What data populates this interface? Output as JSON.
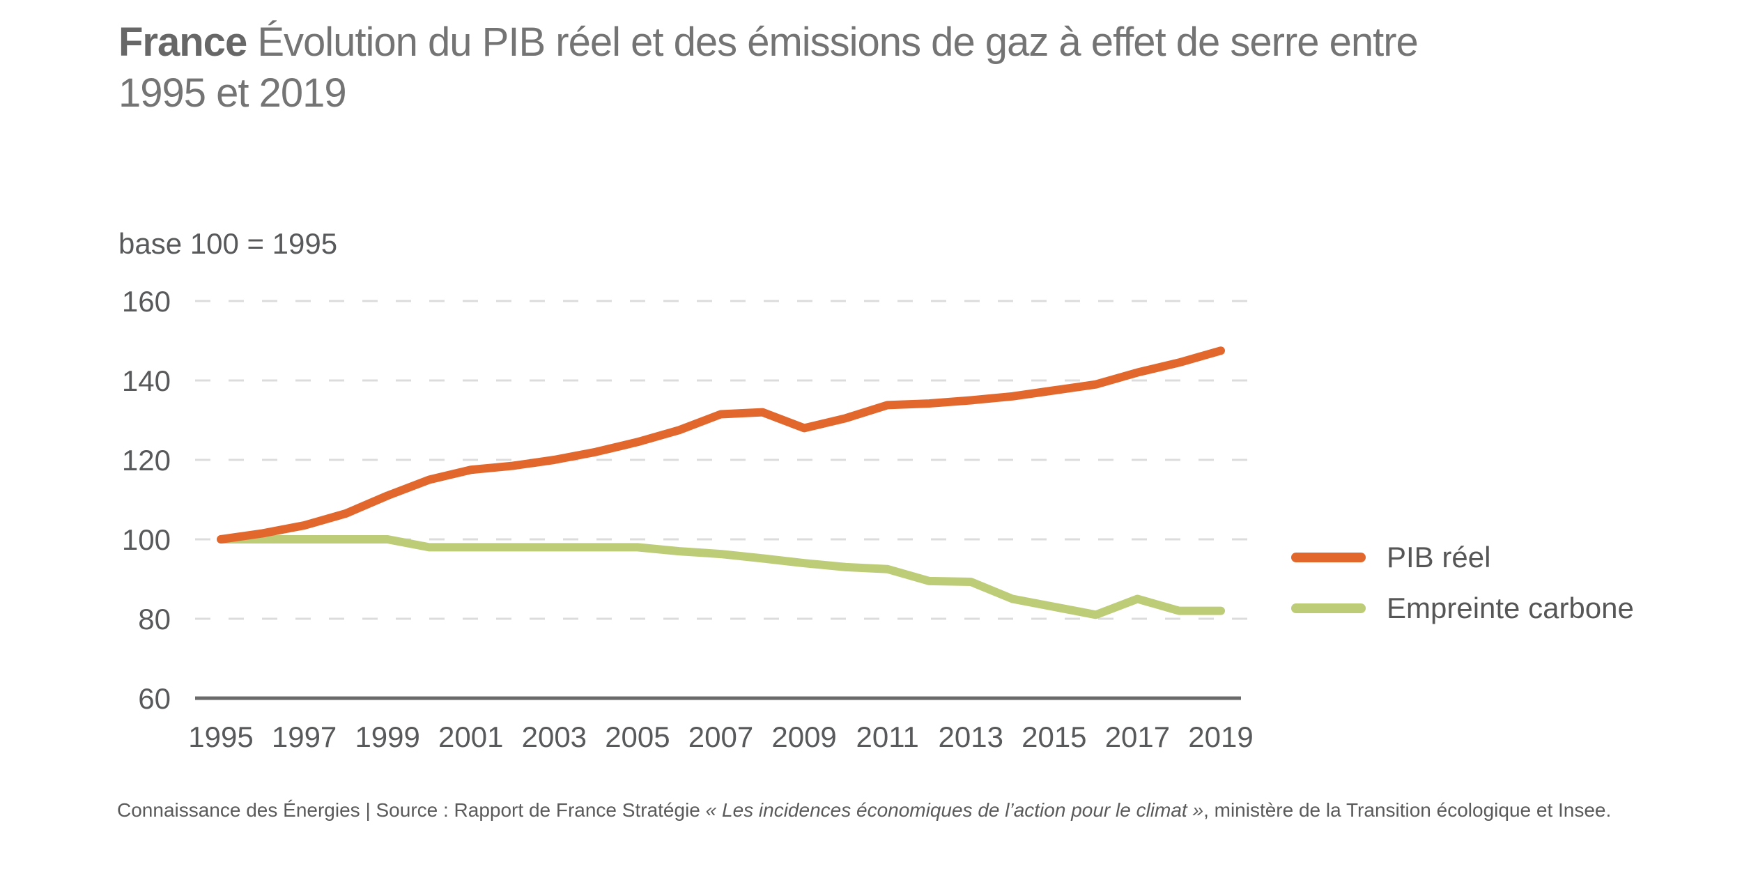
{
  "title": {
    "bold": "France",
    "line1_rest": "Évolution du PIB réel et des émissions de gaz à effet de serre entre",
    "line2": "1995 et 2019"
  },
  "axis_note": "base 100 = 1995",
  "footer": {
    "prefix": "Connaissance des Énergies | Source : Rapport de France Stratégie ",
    "italic": "« Les incidences économiques de l’action pour le climat »",
    "suffix": ", ministère de la Transition écologique et Insee."
  },
  "chart_data": {
    "type": "line",
    "x": [
      1995,
      1996,
      1997,
      1998,
      1999,
      2000,
      2001,
      2002,
      2003,
      2004,
      2005,
      2006,
      2007,
      2008,
      2009,
      2010,
      2011,
      2012,
      2013,
      2014,
      2015,
      2016,
      2017,
      2018,
      2019
    ],
    "series": [
      {
        "name": "PIB réel",
        "color": "#E2672D",
        "values": [
          100,
          101.5,
          103.5,
          106.5,
          111,
          115,
          117.5,
          118.5,
          120,
          122,
          124.5,
          127.5,
          131.5,
          132,
          128,
          130.5,
          133.8,
          134.2,
          135,
          136,
          137.5,
          139,
          142,
          144.5,
          147.5
        ]
      },
      {
        "name": "Empreinte carbone",
        "color": "#BDCC77",
        "values": [
          100,
          100,
          100,
          100,
          100,
          98,
          98,
          98,
          98,
          98,
          98,
          97,
          96.3,
          95.2,
          94,
          93,
          92.5,
          89.5,
          89.3,
          85,
          83,
          81,
          85,
          82,
          82
        ]
      }
    ],
    "title": "France Évolution du PIB réel et des émissions de gaz à effet de serre entre 1995 et 2019",
    "y_note": "base 100 = 1995",
    "ylim": [
      60,
      160
    ],
    "yticks": [
      60,
      80,
      100,
      120,
      140,
      160
    ],
    "xticks": [
      1995,
      1997,
      1999,
      2001,
      2003,
      2005,
      2007,
      2009,
      2011,
      2013,
      2015,
      2017,
      2019
    ],
    "grid": "horizontal-dashed",
    "legend_position": "right",
    "colors": {
      "grid": "#dcdcdc",
      "axis": "#6a6a6a",
      "tick_text": "#58595b"
    }
  }
}
